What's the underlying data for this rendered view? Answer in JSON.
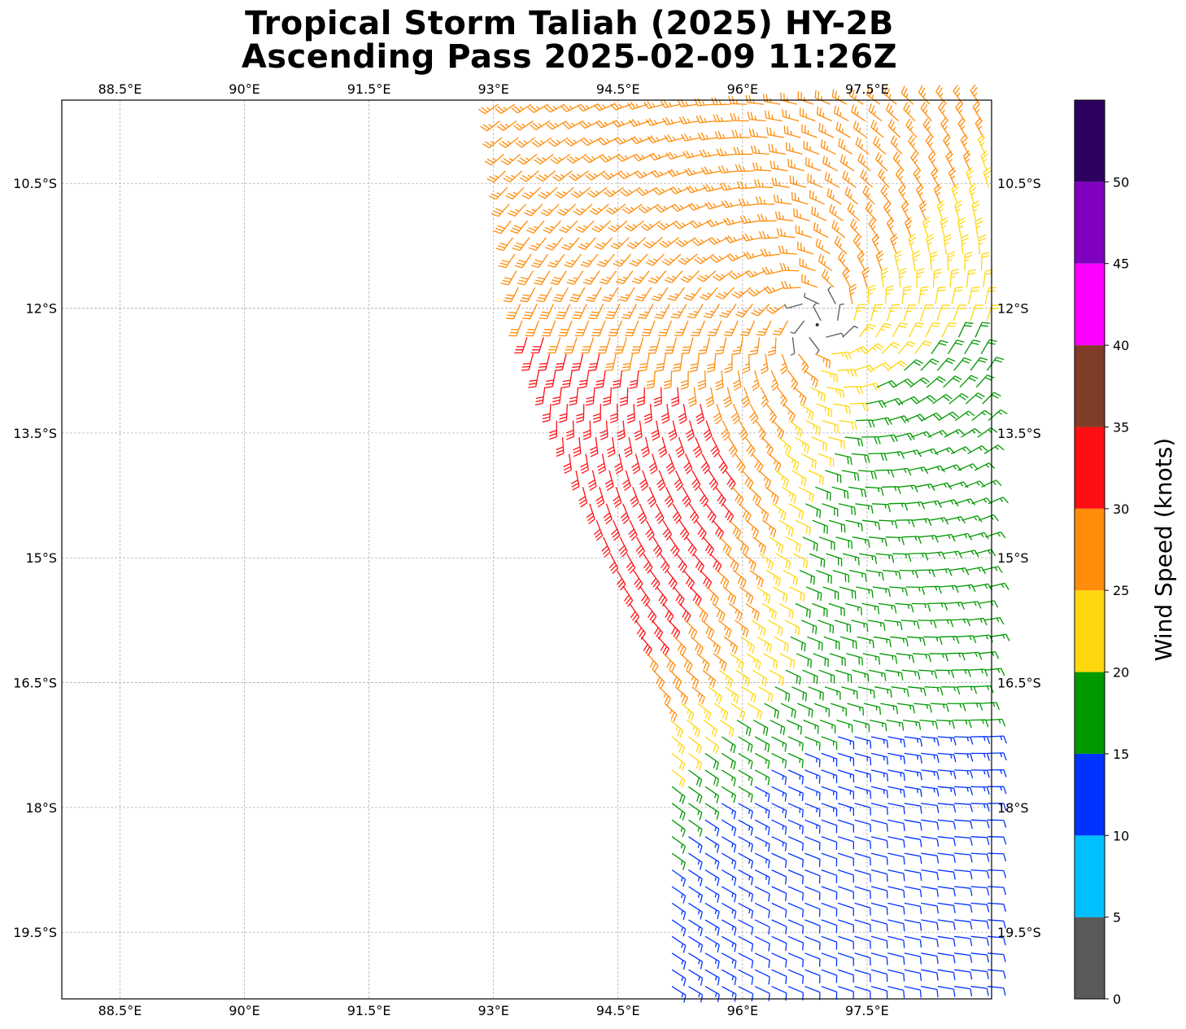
{
  "title": {
    "line1": "Tropical Storm Taliah (2025) HY-2B",
    "line2": "Ascending Pass 2025-02-09 11:26Z"
  },
  "map": {
    "lon_range": [
      87.8,
      99.0
    ],
    "lat_range": [
      -20.3,
      -9.5
    ],
    "lon_ticks": [
      88.5,
      90,
      91.5,
      93,
      94.5,
      96,
      97.5
    ],
    "lon_tick_labels": [
      "88.5°E",
      "90°E",
      "91.5°E",
      "93°E",
      "94.5°E",
      "96°E",
      "97.5°E"
    ],
    "lat_ticks": [
      -10.5,
      -12,
      -13.5,
      -15,
      -16.5,
      -18,
      -19.5
    ],
    "lat_tick_labels": [
      "10.5°S",
      "12°S",
      "13.5°S",
      "15°S",
      "16.5°S",
      "18°S",
      "19.5°S"
    ],
    "gridlines": true
  },
  "colorbar": {
    "label": "Wind Speed (knots)",
    "ticks": [
      0,
      5,
      10,
      15,
      20,
      25,
      30,
      35,
      40,
      45,
      50
    ],
    "tick_labels": [
      "0",
      "5",
      "10",
      "15",
      "20",
      "25",
      "30",
      "35",
      "40",
      "45",
      "50"
    ],
    "bins": [
      {
        "min": 0,
        "max": 5,
        "color": "#5a5a5a"
      },
      {
        "min": 5,
        "max": 10,
        "color": "#00bfff"
      },
      {
        "min": 10,
        "max": 15,
        "color": "#0033ff"
      },
      {
        "min": 15,
        "max": 20,
        "color": "#009900"
      },
      {
        "min": 20,
        "max": 25,
        "color": "#ffd70f"
      },
      {
        "min": 25,
        "max": 30,
        "color": "#ff8c0a"
      },
      {
        "min": 30,
        "max": 35,
        "color": "#ff0f14"
      },
      {
        "min": 35,
        "max": 40,
        "color": "#7f3c28"
      },
      {
        "min": 40,
        "max": 45,
        "color": "#ff00ff"
      },
      {
        "min": 45,
        "max": 50,
        "color": "#8000bf"
      },
      {
        "min": 50,
        "max": 55,
        "color": "#2d005f"
      }
    ]
  },
  "wind_field": {
    "swath_west_edge": [
      [
        93.0,
        -9.5
      ],
      [
        93.3,
        -12.2
      ],
      [
        93.8,
        -13.6
      ],
      [
        94.5,
        -15.3
      ],
      [
        95.1,
        -17.0
      ],
      [
        95.1,
        -20.3
      ]
    ],
    "swath_east_edge": 99.0,
    "circulation_center": [
      96.9,
      -12.2
    ],
    "speed_regions": [
      {
        "name": "rain-contaminated",
        "lon": 94.3,
        "lat": -14.2,
        "speed_kt": 32
      },
      {
        "name": "northern-belt",
        "lon": 95.5,
        "lat": -11.0,
        "speed_kt": 27
      },
      {
        "name": "eastern-light",
        "lon": 98.3,
        "lat": -14.8,
        "speed_kt": 17
      },
      {
        "name": "southeast-weak",
        "lon": 97.8,
        "lat": -19.3,
        "speed_kt": 12
      }
    ],
    "barb_spacing_deg": 0.2
  }
}
